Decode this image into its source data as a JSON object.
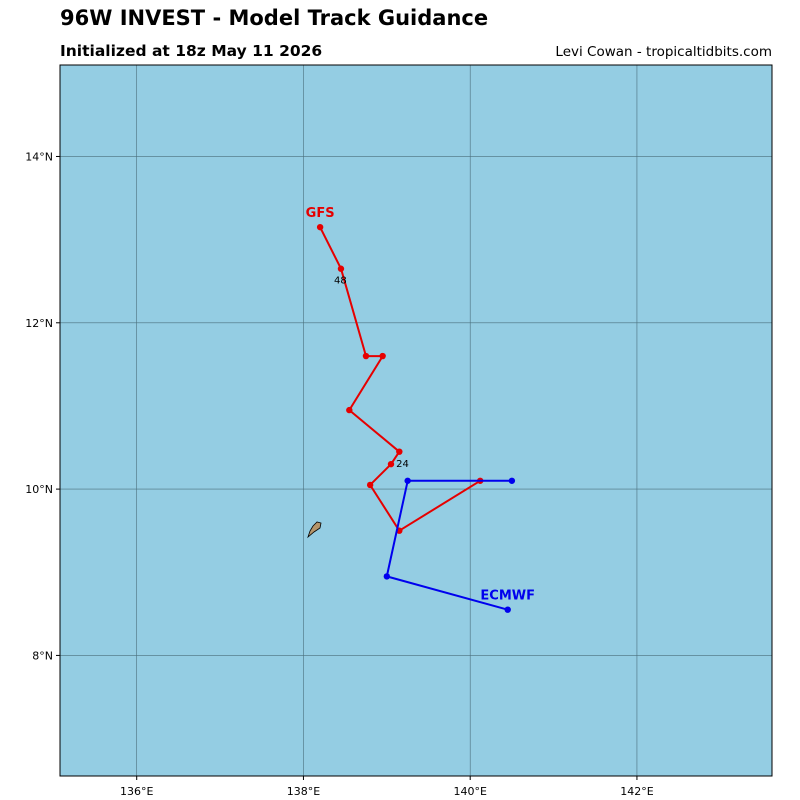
{
  "header": {
    "title": "96W INVEST - Model Track Guidance",
    "subtitle": "Initialized at 18z May 11 2026",
    "credit": "Levi Cowan - tropicaltidbits.com"
  },
  "map": {
    "ocean_color": "#94cde3",
    "land_color": "#b5956a",
    "grid_color": "#4a6f7c",
    "lon_range": [
      135.08,
      143.62
    ],
    "lat_range": [
      6.55,
      15.1
    ],
    "lon_ticks": [
      {
        "value": 136,
        "label": "136°E"
      },
      {
        "value": 138,
        "label": "138°E"
      },
      {
        "value": 140,
        "label": "140°E"
      },
      {
        "value": 142,
        "label": "142°E"
      }
    ],
    "lat_ticks": [
      {
        "value": 8,
        "label": "8°N"
      },
      {
        "value": 10,
        "label": "10°N"
      },
      {
        "value": 12,
        "label": "12°N"
      },
      {
        "value": 14,
        "label": "14°N"
      }
    ]
  },
  "tracks": [
    {
      "name": "GFS",
      "color": "#e60000",
      "points": [
        [
          140.12,
          10.1
        ],
        [
          139.15,
          9.5
        ],
        [
          138.8,
          10.05
        ],
        [
          139.05,
          10.3
        ],
        [
          139.15,
          10.45
        ],
        [
          138.55,
          10.95
        ],
        [
          138.95,
          11.6
        ],
        [
          138.75,
          11.6
        ],
        [
          138.45,
          12.65
        ],
        [
          138.2,
          13.15
        ]
      ],
      "hour_labels": [
        {
          "label": "24",
          "lon": 139.1,
          "lat": 10.3
        },
        {
          "label": "48",
          "lon": 138.45,
          "lat": 12.65
        }
      ]
    },
    {
      "name": "ECMWF",
      "color": "#0000ee",
      "points": [
        [
          140.5,
          10.1
        ],
        [
          139.25,
          10.1
        ],
        [
          139.0,
          8.95
        ],
        [
          140.45,
          8.55
        ]
      ],
      "hour_labels": []
    }
  ]
}
